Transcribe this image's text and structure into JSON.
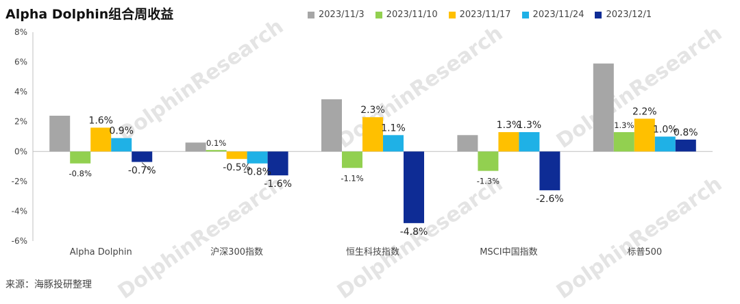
{
  "title": "Alpha Dolphin组合周收益",
  "source": "来源：海豚投研整理",
  "watermark": "DolphinResearch",
  "watermark_cn": "海豚投研",
  "chart_data": {
    "type": "bar",
    "title": "Alpha Dolphin组合周收益",
    "categories": [
      "Alpha Dolphin",
      "沪深300指数",
      "恒生科技指数",
      "MSCI中国指数",
      "标普500"
    ],
    "ylim": [
      -6,
      8
    ],
    "yticks": [
      "-6%",
      "-4%",
      "-2%",
      "0%",
      "2%",
      "4%",
      "6%",
      "8%"
    ],
    "ytick_values": [
      -6,
      -4,
      -2,
      0,
      2,
      4,
      6,
      8
    ],
    "legend_position": "top-right",
    "series": [
      {
        "name": "2023/11/3",
        "color": "#a6a6a6",
        "values": [
          2.4,
          0.6,
          3.5,
          1.1,
          5.9
        ],
        "labels": [
          "",
          "",
          "",
          "",
          ""
        ]
      },
      {
        "name": "2023/11/10",
        "color": "#92d050",
        "values": [
          -0.8,
          0.1,
          -1.1,
          -1.3,
          1.3
        ],
        "labels": [
          "-0.8%",
          "0.1%",
          "-1.1%",
          "-1.3%",
          "1.3%"
        ]
      },
      {
        "name": "2023/11/17",
        "color": "#ffc000",
        "values": [
          1.6,
          -0.5,
          2.3,
          1.3,
          2.2
        ],
        "labels": [
          "1.6%",
          "-0.5%",
          "2.3%",
          "1.3%",
          "2.2%"
        ]
      },
      {
        "name": "2023/11/24",
        "color": "#1fb1e6",
        "values": [
          0.9,
          -0.8,
          1.1,
          1.3,
          1.0
        ],
        "labels": [
          "0.9%",
          "-0.8%",
          "1.1%",
          "1.3%",
          "1.0%"
        ]
      },
      {
        "name": "2023/12/1",
        "color": "#0e2c95",
        "values": [
          -0.7,
          -1.6,
          -4.8,
          -2.6,
          0.8
        ],
        "labels": [
          "-0.7%",
          "-1.6%",
          "-4.8%",
          "-2.6%",
          "0.8%"
        ]
      }
    ]
  }
}
